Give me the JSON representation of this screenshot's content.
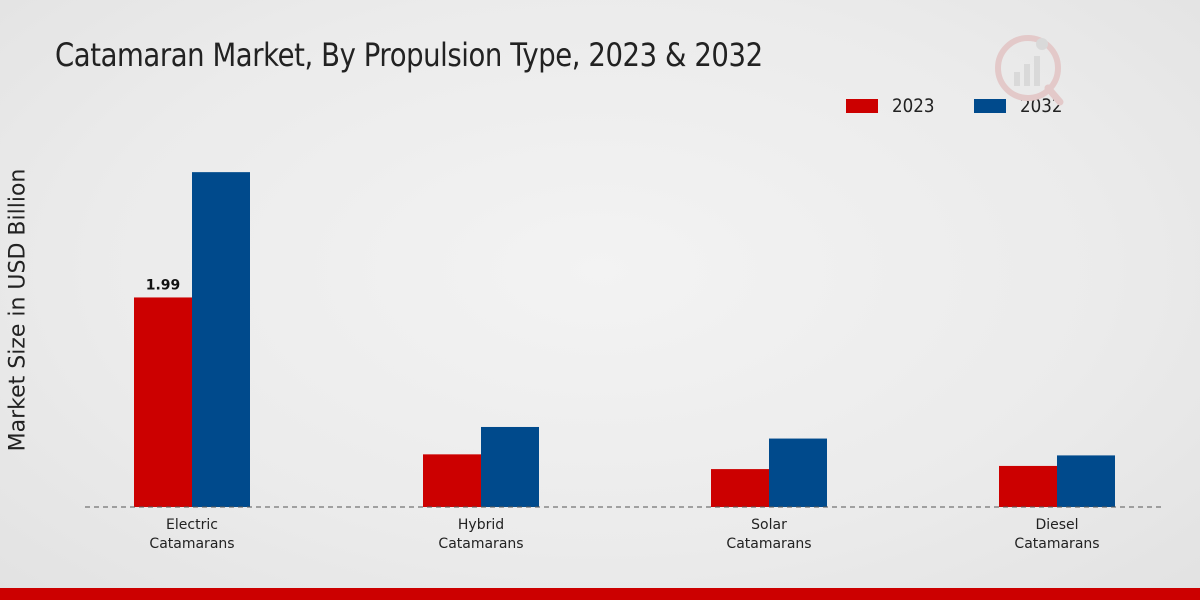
{
  "chart_data": {
    "type": "bar",
    "title": "Catamaran Market, By Propulsion Type, 2023 & 2032",
    "ylabel": "Market Size in USD Billion",
    "xlabel": "",
    "categories": [
      [
        "Electric",
        "Catamarans"
      ],
      [
        "Hybrid",
        "Catamarans"
      ],
      [
        "Solar",
        "Catamarans"
      ],
      [
        "Diesel",
        "Catamarans"
      ]
    ],
    "series": [
      {
        "name": "2023",
        "color": "#cc0000",
        "values": [
          1.99,
          0.5,
          0.36,
          0.39
        ]
      },
      {
        "name": "2032",
        "color": "#004a8c",
        "values": [
          3.18,
          0.76,
          0.65,
          0.49
        ]
      }
    ],
    "data_labels": [
      {
        "series": 0,
        "index": 0,
        "text": "1.99"
      }
    ],
    "ylim": [
      0,
      6.0
    ],
    "grid": false,
    "legend_position": "top-right"
  },
  "footer": {
    "accent_color": "#cc0000"
  }
}
